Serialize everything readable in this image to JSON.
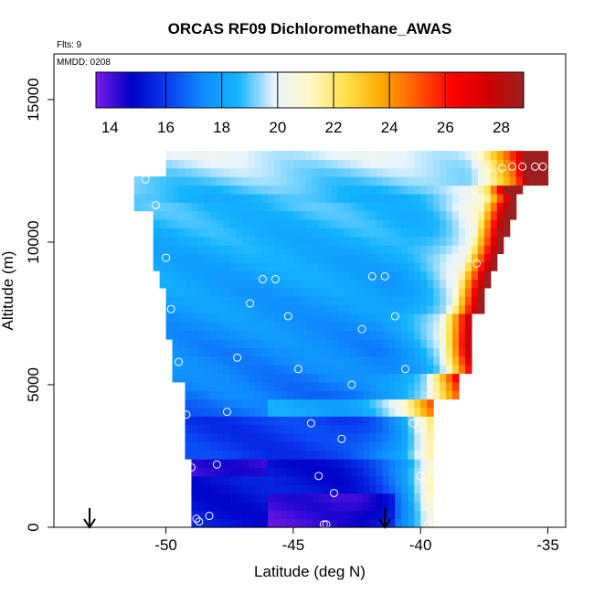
{
  "chart_data": {
    "type": "heatmap",
    "title": "ORCAS RF09 Dichloromethane_AWAS",
    "info_flights": "Flts: 9",
    "info_date": "MMDD: 0208",
    "xlabel": "Latitude (deg N)",
    "ylabel": "Altitude (m)",
    "xlim": [
      -54.4,
      -34.3
    ],
    "ylim": [
      0,
      16600
    ],
    "x_ticks": [
      -50,
      -45,
      -40,
      -35
    ],
    "x_tick_labels": [
      "-50",
      "-45",
      "-40",
      "-35"
    ],
    "y_ticks": [
      0,
      5000,
      10000,
      15000
    ],
    "y_tick_labels": [
      "0",
      "5000",
      "10000",
      "15000"
    ],
    "colorbar": {
      "min": 13.5,
      "max": 28.8,
      "ticks": [
        14,
        16,
        18,
        20,
        22,
        24,
        26,
        28
      ],
      "tick_labels": [
        "14",
        "16",
        "18",
        "20",
        "22",
        "24",
        "26",
        "28"
      ],
      "colors": [
        "#7a1be8",
        "#0000c8",
        "#0a3cf0",
        "#0f8cff",
        "#14b4ff",
        "#e8f4ff",
        "#fff8c8",
        "#ffe14a",
        "#ffaa00",
        "#ff5a00",
        "#ff0000",
        "#d20000",
        "#9c1f1f"
      ],
      "separator_values": [
        16,
        18,
        20,
        22,
        24,
        26
      ]
    },
    "samples": [
      {
        "lat": -50.8,
        "alt": 12200
      },
      {
        "lat": -50.4,
        "alt": 11300
      },
      {
        "lat": -50.0,
        "alt": 9450
      },
      {
        "lat": -49.8,
        "alt": 7650
      },
      {
        "lat": -49.5,
        "alt": 5800
      },
      {
        "lat": -49.2,
        "alt": 3950
      },
      {
        "lat": -49.0,
        "alt": 2100
      },
      {
        "lat": -48.8,
        "alt": 300
      },
      {
        "lat": -48.7,
        "alt": 200
      },
      {
        "lat": -48.3,
        "alt": 400
      },
      {
        "lat": -48.0,
        "alt": 2200
      },
      {
        "lat": -47.6,
        "alt": 4050
      },
      {
        "lat": -47.2,
        "alt": 5950
      },
      {
        "lat": -46.7,
        "alt": 7850
      },
      {
        "lat": -46.2,
        "alt": 8700
      },
      {
        "lat": -45.7,
        "alt": 8700
      },
      {
        "lat": -45.2,
        "alt": 7400
      },
      {
        "lat": -44.8,
        "alt": 5550
      },
      {
        "lat": -44.3,
        "alt": 3650
      },
      {
        "lat": -44.0,
        "alt": 1800
      },
      {
        "lat": -43.8,
        "alt": 100
      },
      {
        "lat": -43.7,
        "alt": 100
      },
      {
        "lat": -43.4,
        "alt": 1200
      },
      {
        "lat": -43.1,
        "alt": 3100
      },
      {
        "lat": -42.7,
        "alt": 5000
      },
      {
        "lat": -42.3,
        "alt": 6950
      },
      {
        "lat": -41.9,
        "alt": 8800
      },
      {
        "lat": -41.4,
        "alt": 8800
      },
      {
        "lat": -41.0,
        "alt": 7400
      },
      {
        "lat": -40.6,
        "alt": 5550
      },
      {
        "lat": -40.3,
        "alt": 3650
      },
      {
        "lat": -40.0,
        "alt": 1800
      },
      {
        "lat": -39.7,
        "alt": 100
      },
      {
        "lat": -37.8,
        "alt": 9250
      },
      {
        "lat": -37.3,
        "alt": 12600
      },
      {
        "lat": -36.8,
        "alt": 12600
      },
      {
        "lat": -36.4,
        "alt": 12650
      },
      {
        "lat": -36.0,
        "alt": 12650
      },
      {
        "lat": -35.5,
        "alt": 12650
      },
      {
        "lat": -35.2,
        "alt": 12650
      }
    ],
    "markers": [
      {
        "type": "arrow-down",
        "lat": -53.0
      },
      {
        "type": "arrow-down",
        "lat": -41.4
      }
    ]
  }
}
